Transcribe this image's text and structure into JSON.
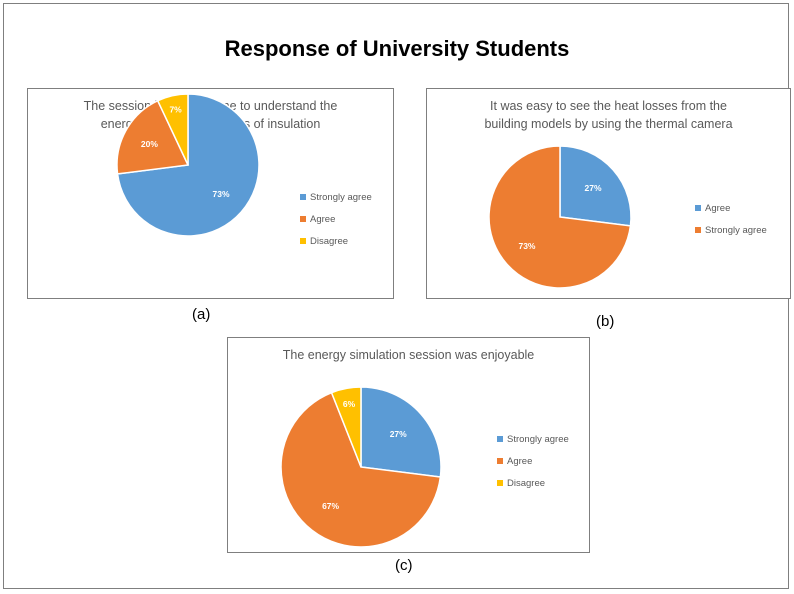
{
  "title": "Response of University Students",
  "colors": {
    "blue": "#5b9bd5",
    "orange": "#ed7d31",
    "yellow": "#ffc000"
  },
  "chart_data": [
    {
      "type": "pie",
      "title": "The session has helped me to understand the\nenergy saving and benefits of insulation",
      "caption": "(a)",
      "categories": [
        "Strongly agree",
        "Agree",
        "Disagree"
      ],
      "values": [
        73,
        20,
        7
      ],
      "labels": [
        "73%",
        "20%",
        "7%"
      ],
      "colors": [
        "#5b9bd5",
        "#ed7d31",
        "#ffc000"
      ],
      "legend": "right"
    },
    {
      "type": "pie",
      "title": "It was easy to see the heat losses from the\nbuilding models by using the thermal camera",
      "caption": "(b)",
      "categories": [
        "Agree",
        "Strongly agree"
      ],
      "values": [
        27,
        73
      ],
      "labels": [
        "27%",
        "73%"
      ],
      "colors": [
        "#5b9bd5",
        "#ed7d31"
      ],
      "legend": "right"
    },
    {
      "type": "pie",
      "title": "The energy simulation session was enjoyable",
      "caption": "(c)",
      "categories": [
        "Strongly agree",
        "Agree",
        "Disagree"
      ],
      "values": [
        27,
        67,
        6
      ],
      "labels": [
        "27%",
        "67%",
        "6%"
      ],
      "colors": [
        "#5b9bd5",
        "#ed7d31",
        "#ffc000"
      ],
      "legend": "right"
    }
  ]
}
